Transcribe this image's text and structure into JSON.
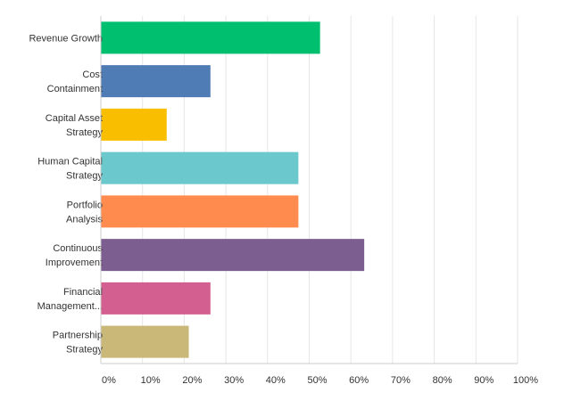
{
  "chart_data": {
    "type": "bar",
    "orientation": "horizontal",
    "categories": [
      [
        "Revenue Growth"
      ],
      [
        "Cost",
        "Containment"
      ],
      [
        "Capital Asset",
        "Strategy"
      ],
      [
        "Human Capital",
        "Strategy"
      ],
      [
        "Portfolio",
        "Analysis"
      ],
      [
        "Continuous",
        "Improvement"
      ],
      [
        "Financial",
        "Management..."
      ],
      [
        "Partnership",
        "Strategy"
      ]
    ],
    "values": [
      52.6,
      26.3,
      15.8,
      47.4,
      47.4,
      63.2,
      26.3,
      21.1
    ],
    "colors": [
      "#00bf6f",
      "#507cb6",
      "#f9be00",
      "#6bc8cd",
      "#ff8b4f",
      "#7d5e90",
      "#d25f90",
      "#c9b877"
    ],
    "xlim": [
      0,
      100
    ],
    "x_tick_labels": [
      "0%",
      "10%",
      "20%",
      "30%",
      "40%",
      "50%",
      "60%",
      "70%",
      "80%",
      "90%",
      "100%"
    ],
    "grid": true,
    "title": "",
    "xlabel": "",
    "ylabel": ""
  }
}
